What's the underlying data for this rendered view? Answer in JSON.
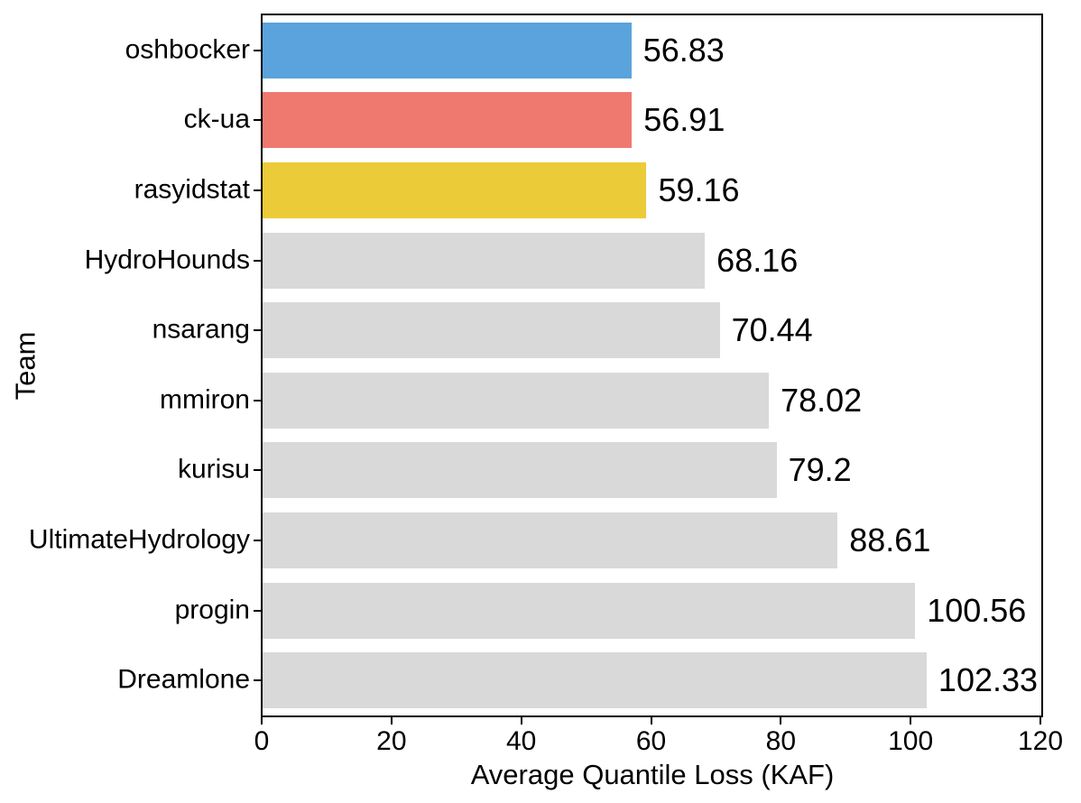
{
  "chart_data": {
    "type": "bar",
    "orientation": "horizontal",
    "title": "",
    "xlabel": "Average Quantile Loss (KAF)",
    "ylabel": "Team",
    "xlim": [
      0,
      120
    ],
    "xticks": [
      "0",
      "20",
      "40",
      "60",
      "80",
      "100",
      "120"
    ],
    "xtick_values": [
      0,
      20,
      40,
      60,
      80,
      100,
      120
    ],
    "grid": false,
    "legend_position": "none",
    "bar_height_fraction": 0.8,
    "categories": [
      "oshbocker",
      "ck-ua",
      "rasyidstat",
      "HydroHounds",
      "nsarang",
      "mmiron",
      "kurisu",
      "UltimateHydrology",
      "progin",
      "Dreamlone"
    ],
    "values": [
      56.83,
      56.91,
      59.16,
      68.16,
      70.44,
      78.02,
      79.2,
      88.61,
      100.56,
      102.33
    ],
    "value_labels": [
      "56.83",
      "56.91",
      "59.16",
      "68.16",
      "70.44",
      "78.02",
      "79.2",
      "88.61",
      "100.56",
      "102.33"
    ],
    "bar_colors": [
      "#5BA3DC",
      "#F0796F",
      "#ECCB38",
      "#D9D9D9",
      "#D9D9D9",
      "#D9D9D9",
      "#D9D9D9",
      "#D9D9D9",
      "#D9D9D9",
      "#D9D9D9"
    ],
    "colors": {
      "highlight_blue": "#5BA3DC",
      "highlight_red": "#F0796F",
      "highlight_yellow": "#ECCB38",
      "default_gray": "#D9D9D9",
      "axis": "#000000",
      "text": "#000000",
      "background": "#FFFFFF"
    }
  }
}
